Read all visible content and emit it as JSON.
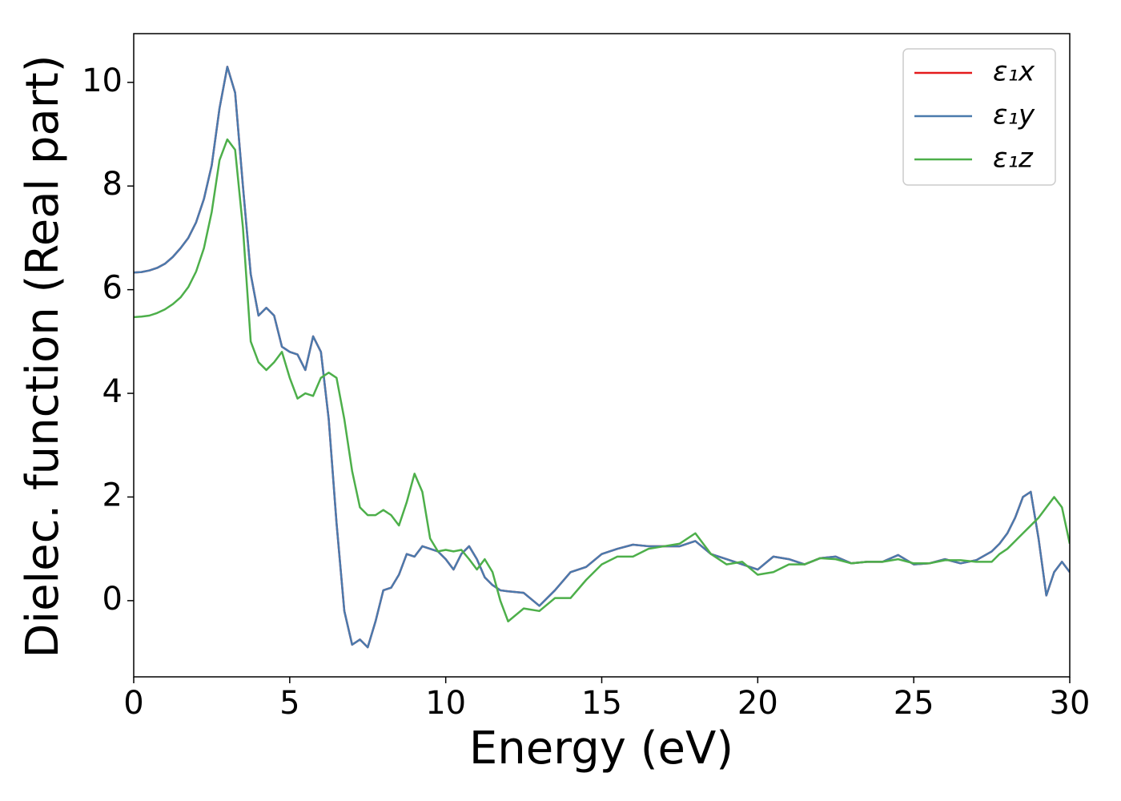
{
  "chart_data": {
    "type": "line",
    "xlabel": "Energy (eV)",
    "ylabel": "Dielec. function (Real part)",
    "xlim": [
      0,
      30
    ],
    "ylim": [
      -1.47,
      10.94
    ],
    "xticks": [
      0,
      5,
      10,
      15,
      20,
      25,
      30
    ],
    "yticks": [
      0,
      2,
      4,
      6,
      8,
      10
    ],
    "legend": "upper right",
    "x": [
      0,
      0.25,
      0.5,
      0.75,
      1,
      1.25,
      1.5,
      1.75,
      2,
      2.25,
      2.5,
      2.75,
      3,
      3.25,
      3.5,
      3.75,
      4,
      4.25,
      4.5,
      4.75,
      5,
      5.25,
      5.5,
      5.75,
      6,
      6.25,
      6.5,
      6.75,
      7,
      7.25,
      7.5,
      7.75,
      8,
      8.25,
      8.5,
      8.75,
      9,
      9.25,
      9.5,
      9.75,
      10,
      10.25,
      10.5,
      10.75,
      11,
      11.25,
      11.5,
      11.75,
      12,
      12.5,
      13,
      13.5,
      14,
      14.5,
      15,
      15.5,
      16,
      16.5,
      17,
      17.5,
      18,
      18.5,
      19,
      19.5,
      20,
      20.5,
      21,
      21.5,
      22,
      22.5,
      23,
      23.5,
      24,
      24.5,
      25,
      25.5,
      26,
      26.5,
      27,
      27.5,
      27.75,
      28,
      28.25,
      28.5,
      28.75,
      29,
      29.25,
      29.5,
      29.75,
      30
    ],
    "series": [
      {
        "name": "ε₁x",
        "color": "#e41a1c",
        "values": [
          6.33,
          6.34,
          6.37,
          6.42,
          6.5,
          6.63,
          6.8,
          7.0,
          7.3,
          7.75,
          8.4,
          9.5,
          10.3,
          9.8,
          8.0,
          6.3,
          5.5,
          5.65,
          5.5,
          4.9,
          4.8,
          4.75,
          4.45,
          5.1,
          4.8,
          3.5,
          1.5,
          -0.2,
          -0.85,
          -0.75,
          -0.9,
          -0.4,
          0.2,
          0.25,
          0.5,
          0.9,
          0.85,
          1.05,
          1.0,
          0.95,
          0.8,
          0.6,
          0.9,
          1.05,
          0.8,
          0.45,
          0.3,
          0.2,
          0.18,
          0.15,
          -0.1,
          0.2,
          0.55,
          0.65,
          0.9,
          1.0,
          1.08,
          1.05,
          1.05,
          1.05,
          1.15,
          0.9,
          0.8,
          0.7,
          0.6,
          0.85,
          0.8,
          0.7,
          0.82,
          0.85,
          0.72,
          0.75,
          0.75,
          0.88,
          0.7,
          0.72,
          0.8,
          0.72,
          0.78,
          0.95,
          1.1,
          1.3,
          1.6,
          2.0,
          2.1,
          1.2,
          0.1,
          0.55,
          0.75,
          0.55
        ]
      },
      {
        "name": "ε₁y",
        "color": "#4a7aad",
        "values": [
          6.33,
          6.34,
          6.37,
          6.42,
          6.5,
          6.63,
          6.8,
          7.0,
          7.3,
          7.75,
          8.4,
          9.5,
          10.3,
          9.8,
          8.0,
          6.3,
          5.5,
          5.65,
          5.5,
          4.9,
          4.8,
          4.75,
          4.45,
          5.1,
          4.8,
          3.5,
          1.5,
          -0.2,
          -0.85,
          -0.75,
          -0.9,
          -0.4,
          0.2,
          0.25,
          0.5,
          0.9,
          0.85,
          1.05,
          1.0,
          0.95,
          0.8,
          0.6,
          0.9,
          1.05,
          0.8,
          0.45,
          0.3,
          0.2,
          0.18,
          0.15,
          -0.1,
          0.2,
          0.55,
          0.65,
          0.9,
          1.0,
          1.08,
          1.05,
          1.05,
          1.05,
          1.15,
          0.9,
          0.8,
          0.7,
          0.6,
          0.85,
          0.8,
          0.7,
          0.82,
          0.85,
          0.72,
          0.75,
          0.75,
          0.88,
          0.7,
          0.72,
          0.8,
          0.72,
          0.78,
          0.95,
          1.1,
          1.3,
          1.6,
          2.0,
          2.1,
          1.2,
          0.1,
          0.55,
          0.75,
          0.55
        ]
      },
      {
        "name": "ε₁z",
        "color": "#4daf4a",
        "values": [
          5.47,
          5.48,
          5.5,
          5.55,
          5.62,
          5.72,
          5.85,
          6.05,
          6.35,
          6.8,
          7.5,
          8.5,
          8.9,
          8.7,
          7.2,
          5.0,
          4.6,
          4.45,
          4.6,
          4.8,
          4.3,
          3.9,
          4.0,
          3.95,
          4.3,
          4.4,
          4.3,
          3.5,
          2.5,
          1.8,
          1.65,
          1.65,
          1.75,
          1.65,
          1.45,
          1.9,
          2.45,
          2.1,
          1.2,
          0.95,
          0.98,
          0.95,
          0.98,
          0.8,
          0.6,
          0.8,
          0.55,
          0.0,
          -0.4,
          -0.15,
          -0.2,
          0.05,
          0.05,
          0.4,
          0.7,
          0.85,
          0.85,
          1.0,
          1.05,
          1.1,
          1.3,
          0.9,
          0.7,
          0.75,
          0.5,
          0.55,
          0.7,
          0.7,
          0.82,
          0.8,
          0.72,
          0.75,
          0.75,
          0.8,
          0.72,
          0.72,
          0.78,
          0.78,
          0.75,
          0.75,
          0.9,
          1.0,
          1.15,
          1.3,
          1.45,
          1.6,
          1.8,
          2.0,
          1.8,
          1.1
        ]
      }
    ]
  }
}
